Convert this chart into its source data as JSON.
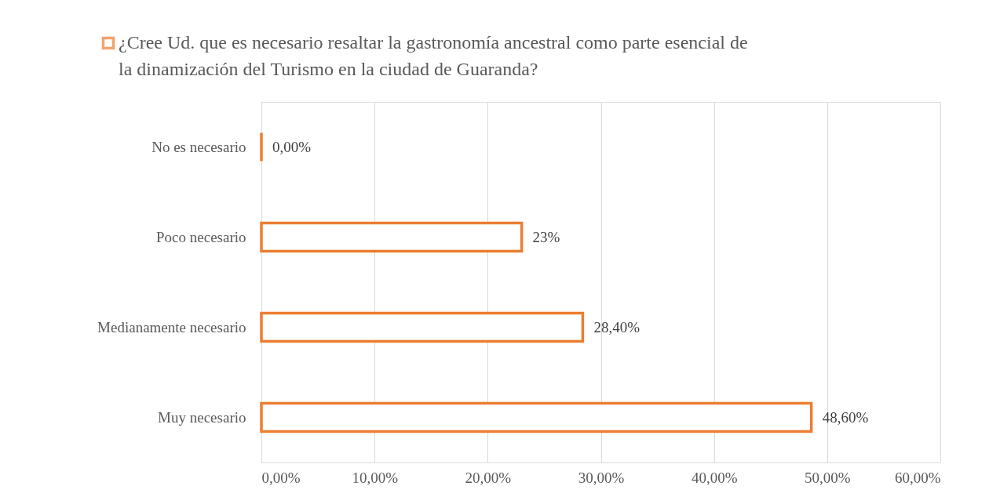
{
  "chart_data": {
    "type": "bar",
    "orientation": "horizontal",
    "categories": [
      "No es necesario",
      "Poco necesario",
      "Medianamente necesario",
      "Muy necesario"
    ],
    "series": [
      {
        "name": "¿Cree Ud. que es necesario resaltar la gastronomía ancestral como parte esencial de la dinamización del Turismo en la ciudad de Guaranda?",
        "color": "#ed7d31",
        "values": [
          0,
          23,
          28.4,
          48.6
        ],
        "value_labels": [
          "0,00%",
          "23%",
          "28,40%",
          "48,60%"
        ]
      }
    ],
    "xlim": [
      0,
      60
    ],
    "xticks": [
      {
        "value": 0,
        "label": "0,00%"
      },
      {
        "value": 10,
        "label": "10,00%"
      },
      {
        "value": 20,
        "label": "20,00%"
      },
      {
        "value": 30,
        "label": "30,00%"
      },
      {
        "value": 40,
        "label": "40,00%"
      },
      {
        "value": 50,
        "label": "50,00%"
      },
      {
        "value": 60,
        "label": "60,00%"
      }
    ],
    "grid": "x",
    "legend": "top"
  }
}
